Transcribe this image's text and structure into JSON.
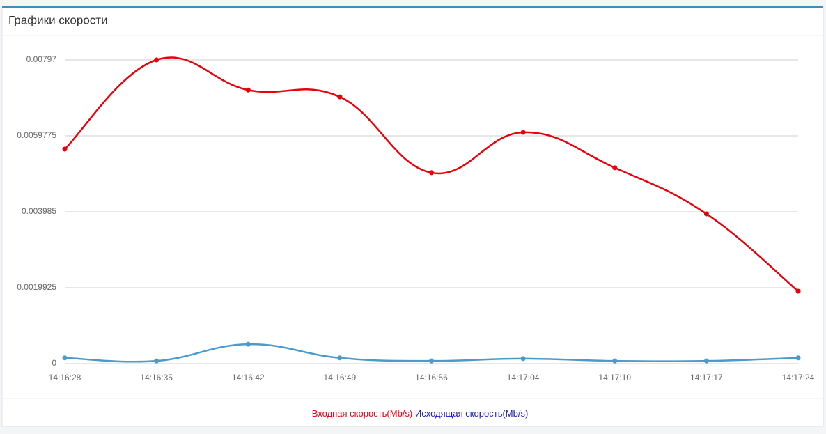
{
  "chart_data": {
    "type": "line",
    "title": "Графики скорости",
    "categories": [
      "14:16:28",
      "14:16:35",
      "14:16:42",
      "14:16:49",
      "14:16:56",
      "14:17:04",
      "14:17:10",
      "14:17:17",
      "14:17:24"
    ],
    "series": [
      {
        "name": "Входная скорость(Mb/s)",
        "color": "#e8000b",
        "legend_color": "#e8000b",
        "values": [
          0.00563,
          0.00797,
          0.00718,
          0.007,
          0.00501,
          0.00607,
          0.00514,
          0.00393,
          0.0019
        ]
      },
      {
        "name": "Исходящая скорость(Mb/s)",
        "color": "#4a9acb",
        "legend_color": "#1a1acc",
        "values": [
          0.00015,
          7e-05,
          0.00051,
          0.00015,
          7e-05,
          0.00013,
          7e-05,
          7e-05,
          0.00015
        ]
      }
    ],
    "ylim": [
      0,
      0.00797
    ],
    "yticks": [
      0,
      0.0019925,
      0.003985,
      0.0059775,
      0.00797
    ],
    "grid": true
  }
}
